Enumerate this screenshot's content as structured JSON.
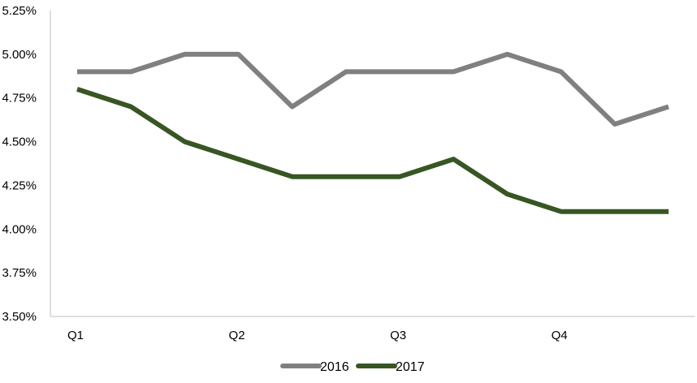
{
  "chart_data": {
    "type": "line",
    "title": "",
    "xlabel": "",
    "ylabel": "",
    "ylim": [
      3.5,
      5.25
    ],
    "y_ticks": [
      "3.50%",
      "3.75%",
      "4.00%",
      "4.25%",
      "4.50%",
      "4.75%",
      "5.00%",
      "5.25%"
    ],
    "y_tick_values": [
      3.5,
      3.75,
      4.0,
      4.25,
      4.5,
      4.75,
      5.0,
      5.25
    ],
    "x_labels": [
      "Q1",
      "Q2",
      "Q3",
      "Q4"
    ],
    "x_label_positions": [
      0,
      3,
      6,
      9
    ],
    "point_count": 12,
    "grid": false,
    "legend_position": "bottom",
    "series": [
      {
        "name": "2016",
        "color": "#808080",
        "values": [
          4.9,
          4.9,
          5.0,
          5.0,
          4.7,
          4.9,
          4.9,
          4.9,
          5.0,
          4.9,
          4.6,
          4.7
        ]
      },
      {
        "name": "2017",
        "color": "#375623",
        "values": [
          4.8,
          4.7,
          4.5,
          4.4,
          4.3,
          4.3,
          4.3,
          4.4,
          4.2,
          4.1,
          4.1,
          4.1
        ]
      }
    ]
  }
}
